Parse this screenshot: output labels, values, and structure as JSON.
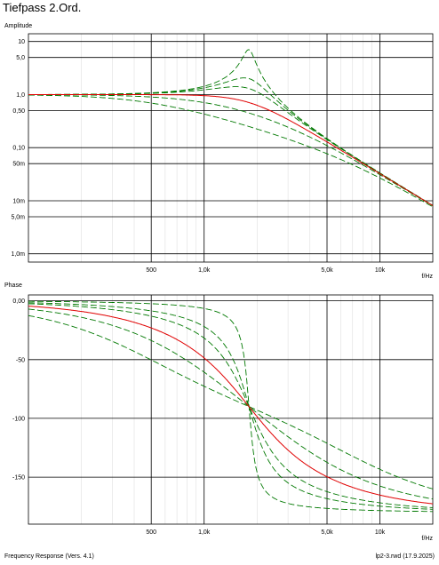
{
  "page": {
    "title": "Tiefpass 2.Ord.",
    "footer_left": "Frequency Response (Vers. 4.1)",
    "footer_right": "lp2-3.rwd (17.9.2025)"
  },
  "colors": {
    "reference": "#e00000",
    "family": "#007800",
    "grid": "#000000"
  },
  "chart_data": [
    {
      "type": "line",
      "ylabel": "Amplitude",
      "xunit": "f/Hz",
      "x_scale": "log",
      "y_scale": "log",
      "xlim": [
        100,
        20000
      ],
      "ylim": [
        0.0007,
        14
      ],
      "x_ticks": [
        {
          "v": 500,
          "label": "500"
        },
        {
          "v": 1000,
          "label": "1,0k"
        },
        {
          "v": 5000,
          "label": "5,0k"
        },
        {
          "v": 10000,
          "label": "10k"
        }
      ],
      "y_ticks": [
        {
          "v": 10,
          "label": "10"
        },
        {
          "v": 5,
          "label": "5,0"
        },
        {
          "v": 1,
          "label": "1,0"
        },
        {
          "v": 0.5,
          "label": "0,50"
        },
        {
          "v": 0.1,
          "label": "0,10"
        },
        {
          "v": 0.05,
          "label": "50m"
        },
        {
          "v": 0.01,
          "label": "10m"
        },
        {
          "v": 0.005,
          "label": "5,0m"
        },
        {
          "v": 0.001,
          "label": "1,0m"
        }
      ],
      "grid": true,
      "f0": 1800,
      "series": [
        {
          "q": 0.707,
          "style": "solid",
          "color": "#e00000"
        },
        {
          "q": 7,
          "style": "dashed",
          "color": "#007800"
        },
        {
          "q": 2,
          "style": "dashed",
          "color": "#007800"
        },
        {
          "q": 1.3,
          "style": "dashed",
          "color": "#007800"
        },
        {
          "q": 0.45,
          "style": "dashed",
          "color": "#007800"
        },
        {
          "q": 0.25,
          "style": "dashed",
          "color": "#007800"
        }
      ]
    },
    {
      "type": "line",
      "ylabel": "Phase",
      "xunit": "f/Hz",
      "x_scale": "log",
      "y_scale": "linear",
      "xlim": [
        100,
        20000
      ],
      "ylim": [
        -190,
        5
      ],
      "x_ticks": [
        {
          "v": 500,
          "label": "500"
        },
        {
          "v": 1000,
          "label": "1,0k"
        },
        {
          "v": 5000,
          "label": "5,0k"
        },
        {
          "v": 10000,
          "label": "10k"
        }
      ],
      "y_ticks": [
        {
          "v": 0,
          "label": "0,00"
        },
        {
          "v": -50,
          "label": "-50"
        },
        {
          "v": -100,
          "label": "-100"
        },
        {
          "v": -150,
          "label": "-150"
        }
      ],
      "grid": true,
      "f0": 1800,
      "series": [
        {
          "q": 0.707,
          "style": "solid",
          "color": "#e00000"
        },
        {
          "q": 7,
          "style": "dashed",
          "color": "#007800"
        },
        {
          "q": 2,
          "style": "dashed",
          "color": "#007800"
        },
        {
          "q": 1.3,
          "style": "dashed",
          "color": "#007800"
        },
        {
          "q": 0.45,
          "style": "dashed",
          "color": "#007800"
        },
        {
          "q": 0.25,
          "style": "dashed",
          "color": "#007800"
        }
      ]
    }
  ]
}
